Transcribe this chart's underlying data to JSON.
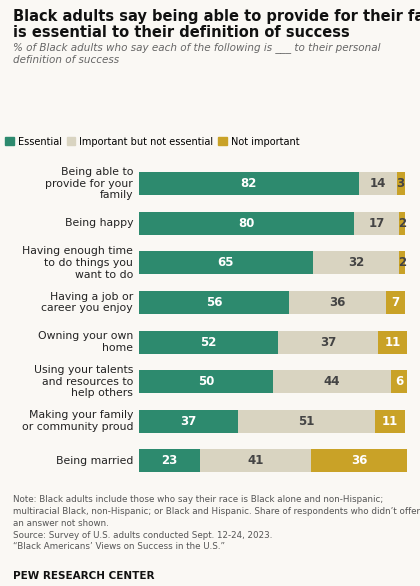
{
  "title_line1": "Black adults say being able to provide for their family",
  "title_line2": "is essential to their definition of success",
  "subtitle": "% of Black adults who say each of the following is ___ to their personal\ndefinition of success",
  "categories": [
    "Being able to\nprovide for your\nfamily",
    "Being happy",
    "Having enough time\nto do things you\nwant to do",
    "Having a job or\ncareer you enjoy",
    "Owning your own\nhome",
    "Using your talents\nand resources to\nhelp others",
    "Making your family\nor community proud",
    "Being married"
  ],
  "essential": [
    82,
    80,
    65,
    56,
    52,
    50,
    37,
    23
  ],
  "important": [
    14,
    17,
    32,
    36,
    37,
    44,
    51,
    41
  ],
  "not_important": [
    3,
    2,
    2,
    7,
    11,
    6,
    11,
    36
  ],
  "color_essential": "#2d8a6e",
  "color_important": "#d9d4c1",
  "color_not_important": "#c9a227",
  "legend_labels": [
    "Essential",
    "Important but not essential",
    "Not important"
  ],
  "note_line1": "Note: Black adults include those who say their race is Black alone and non-Hispanic;",
  "note_line2": "multiracial Black, non-Hispanic; or Black and Hispanic. Share of respondents who didn’t offer",
  "note_line3": "an answer not shown.",
  "note_line4": "Source: Survey of U.S. adults conducted Sept. 12-24, 2023.",
  "note_line5": "“Black Americans’ Views on Success in the U.S.”",
  "source_bold": "PEW RESEARCH CENTER",
  "background_color": "#faf8f4"
}
